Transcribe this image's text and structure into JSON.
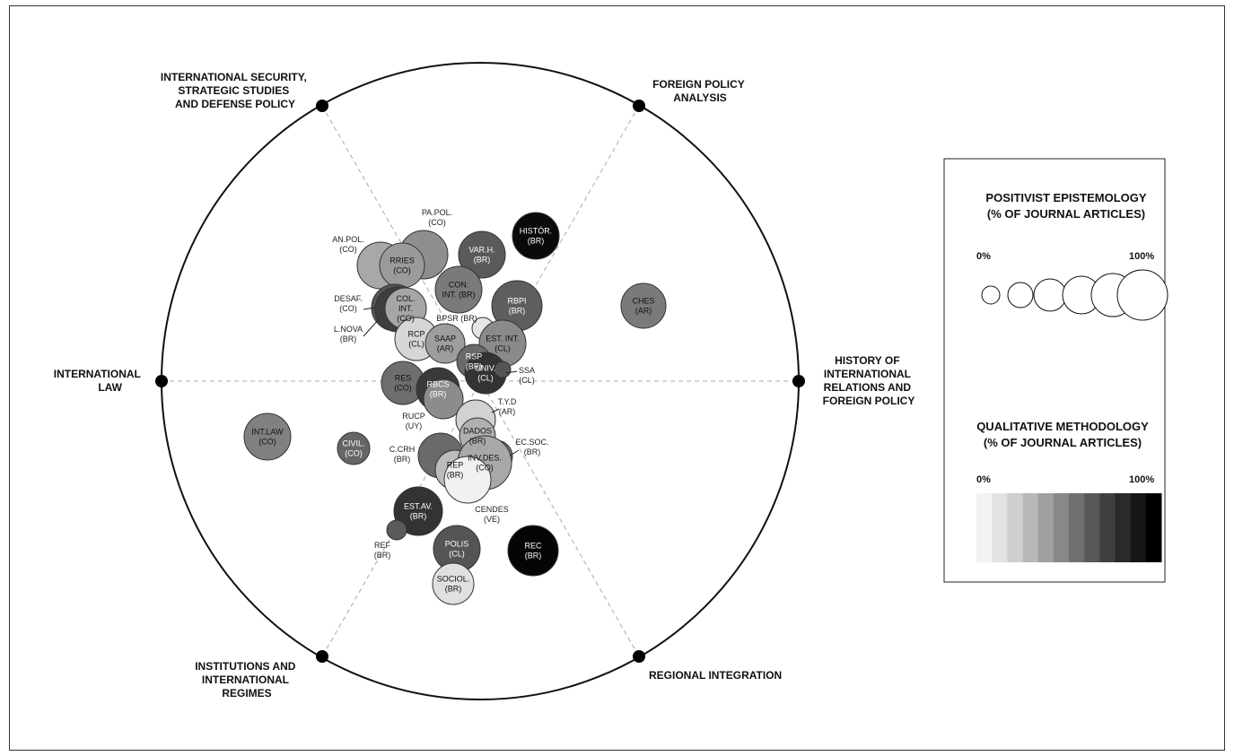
{
  "axes": [
    {
      "id": "intlaw",
      "lines": [
        "INTERNATIONAL",
        "LAW"
      ]
    },
    {
      "id": "security",
      "lines": [
        "INTERNATIONAL SECURITY,",
        "STRATEGIC STUDIES",
        "AND DEFENSE POLICY"
      ]
    },
    {
      "id": "fpa",
      "lines": [
        "FOREIGN POLICY",
        "ANALYSIS"
      ]
    },
    {
      "id": "history",
      "lines": [
        "HISTORY OF",
        "INTERNATIONAL",
        "RELATIONS AND",
        "FOREIGN POLICY"
      ]
    },
    {
      "id": "regional",
      "lines": [
        "REGIONAL INTEGRATION"
      ]
    },
    {
      "id": "institutions",
      "lines": [
        "INSTITUTIONS AND",
        "INTERNATIONAL",
        "REGIMES"
      ]
    }
  ],
  "legend": {
    "size_title_1": "POSITIVIST EPISTEMOLOGY",
    "size_title_2": "(% OF JOURNAL ARTICLES)",
    "size_min": "0%",
    "size_max": "100%",
    "color_title_1": "QUALITATIVE METHODOLOGY",
    "color_title_2": "(% OF JOURNAL ARTICLES)",
    "color_min": "0%",
    "color_max": "100%",
    "color_scale": [
      "#f2f2f2",
      "#e2e2e2",
      "#cfcfcf",
      "#b8b8b8",
      "#a0a0a0",
      "#888888",
      "#707070",
      "#585858",
      "#404040",
      "#2a2a2a",
      "#161616",
      "#000000"
    ]
  },
  "journals": [
    {
      "id": "anpol",
      "lines": [
        "AN.POL.",
        "(CO)"
      ],
      "fill": "#a8a8a8",
      "label_outside": true
    },
    {
      "id": "papol",
      "lines": [
        "PA.POL.",
        "(CO)"
      ],
      "fill": "#8e8e8e",
      "label_outside": true
    },
    {
      "id": "rries",
      "lines": [
        "RRIES",
        "(CO)"
      ],
      "fill": "#9a9a9a"
    },
    {
      "id": "varh",
      "lines": [
        "VAR.H.",
        "(BR)"
      ],
      "fill": "#5a5a5a"
    },
    {
      "id": "histor",
      "lines": [
        "HISTÓR.",
        "(BR)"
      ],
      "fill": "#0a0a0a"
    },
    {
      "id": "conint",
      "lines": [
        "CON.",
        "INT. (BR)"
      ],
      "fill": "#7a7a7a"
    },
    {
      "id": "rbpi",
      "lines": [
        "RBPI",
        "(BR)"
      ],
      "fill": "#5e5e5e"
    },
    {
      "id": "ches",
      "lines": [
        "CHES",
        "(AR)"
      ],
      "fill": "#7a7a7a"
    },
    {
      "id": "desaf",
      "lines": [
        "DESAF.",
        "(CO)"
      ],
      "fill": "#555555",
      "label_outside": true
    },
    {
      "id": "lnova",
      "lines": [
        "L.NOVA",
        "(BR)"
      ],
      "fill": "#3e3e3e",
      "label_outside": true
    },
    {
      "id": "colint",
      "lines": [
        "COL.",
        "INT.",
        "(CO)"
      ],
      "fill": "#a6a6a6"
    },
    {
      "id": "bpsr",
      "lines": [
        "BPSR (BR)"
      ],
      "fill": "#e6e6e6",
      "label_outside": true
    },
    {
      "id": "rcp",
      "lines": [
        "RCP",
        "(CL)"
      ],
      "fill": "#d6d6d6"
    },
    {
      "id": "saap",
      "lines": [
        "SAAP",
        "(AR)"
      ],
      "fill": "#9e9e9e"
    },
    {
      "id": "estint",
      "lines": [
        "EST. INT.",
        "(CL)"
      ],
      "fill": "#8a8a8a"
    },
    {
      "id": "rsp",
      "lines": [
        "RSP",
        "(BR)"
      ],
      "fill": "#6a6a6a"
    },
    {
      "id": "univ",
      "lines": [
        "UNIV.",
        "(CL)"
      ],
      "fill": "#333333"
    },
    {
      "id": "ssa",
      "lines": [
        "SSA",
        "(CL)"
      ],
      "fill": "#555555",
      "label_outside": true
    },
    {
      "id": "res",
      "lines": [
        "RES",
        "(CO)"
      ],
      "fill": "#6e6e6e"
    },
    {
      "id": "rbcs",
      "lines": [
        "RBCS",
        "(BR)"
      ],
      "fill": "#3a3a3a"
    },
    {
      "id": "rucp",
      "lines": [
        "RUCP",
        "(UY)"
      ],
      "fill": "#8c8c8c",
      "label_outside": true
    },
    {
      "id": "tyd",
      "lines": [
        "T.Y.D",
        "(AR)"
      ],
      "fill": "#d2d2d2",
      "label_outside": true
    },
    {
      "id": "dados",
      "lines": [
        "DADOS",
        "(BR)"
      ],
      "fill": "#b0b0b0"
    },
    {
      "id": "ecsoc",
      "lines": [
        "EC.SOC.",
        "(BR)"
      ],
      "fill": "#777777",
      "label_outside": true
    },
    {
      "id": "intlaw",
      "lines": [
        "INT.LAW",
        "(CO)"
      ],
      "fill": "#808080"
    },
    {
      "id": "civil",
      "lines": [
        "CIVIL.",
        "(CO)"
      ],
      "fill": "#666666"
    },
    {
      "id": "ccrh",
      "lines": [
        "C.CRH",
        "(BR)"
      ],
      "fill": "#6a6a6a",
      "label_outside": true
    },
    {
      "id": "rep",
      "lines": [
        "REP",
        "(BR)"
      ],
      "fill": "#bcbcbc"
    },
    {
      "id": "invdes",
      "lines": [
        "INV.DES.",
        "(CO)"
      ],
      "fill": "#a8a8a8"
    },
    {
      "id": "cendes",
      "lines": [
        "CENDES",
        "(VE)"
      ],
      "fill": "#f0f0f0",
      "label_outside": true
    },
    {
      "id": "estav",
      "lines": [
        "EST.AV.",
        "(BR)"
      ],
      "fill": "#333333"
    },
    {
      "id": "ref",
      "lines": [
        "REF",
        "(BR)"
      ],
      "fill": "#5a5a5a",
      "label_outside": true
    },
    {
      "id": "polis",
      "lines": [
        "POLIS",
        "(CL)"
      ],
      "fill": "#555555"
    },
    {
      "id": "rec",
      "lines": [
        "REC",
        "(BR)"
      ],
      "fill": "#050505"
    },
    {
      "id": "sociol",
      "lines": [
        "SOCIOL.",
        "(BR)"
      ],
      "fill": "#e0e0e0"
    }
  ]
}
